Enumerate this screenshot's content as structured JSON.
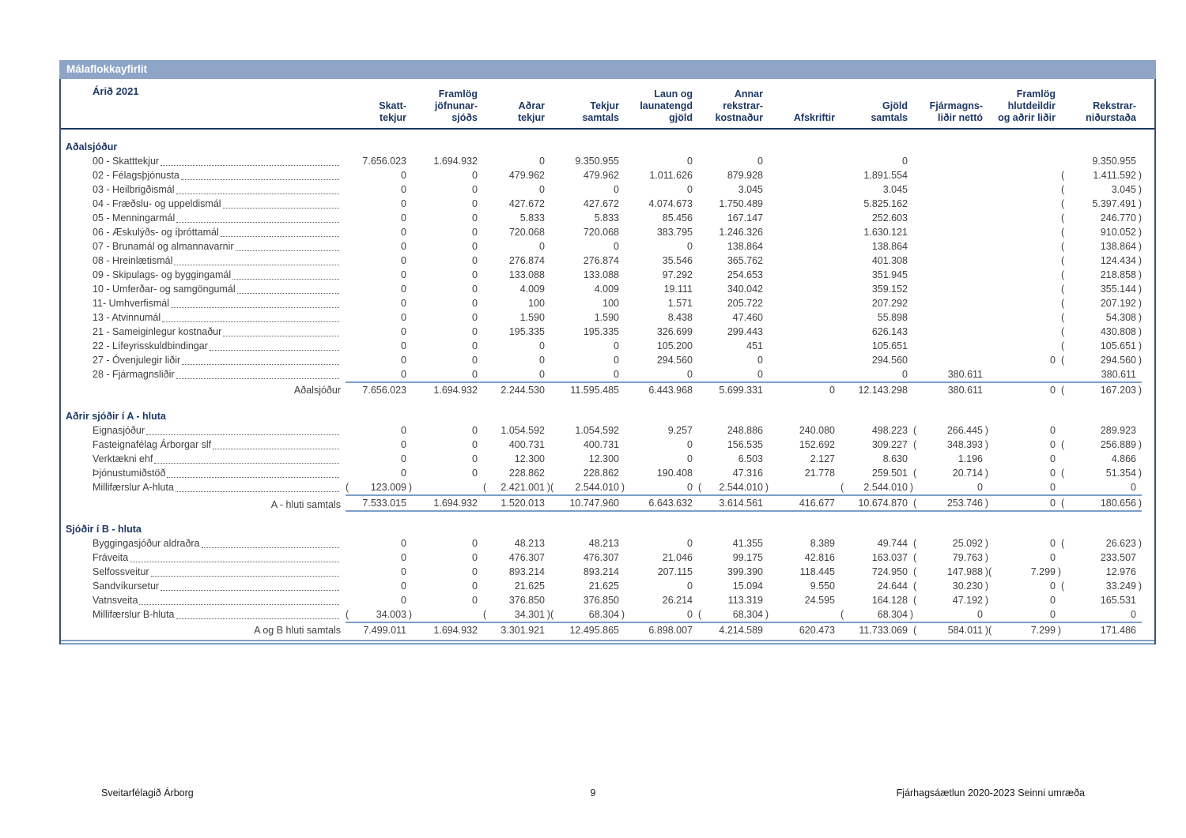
{
  "title_bar": "Málaflokkayfirlit",
  "year_label": "Árið 2021",
  "columns": [
    "Skatt-\ntekjur",
    "Framlög\njöfnunar-\nsjóðs",
    "Aðrar\ntekjur",
    "Tekjur\nsamtals",
    "Laun og\nlaunatengd\ngjöld",
    "Annar\nrekstrar-\nkostnaður",
    "Afskriftir",
    "Gjöld\nsamtals",
    "Fjármagns-\nliðir nettó",
    "Framlög\nhlutdeildir\nog aðrir liðir",
    "Rekstrar-\nniðurstaða"
  ],
  "sections": [
    {
      "heading": "Aðalsjóður",
      "rows": [
        {
          "label": "00 - Skatttekjur",
          "cells": [
            "7.656.023",
            "1.694.932",
            "0",
            "9.350.955",
            "0",
            "0",
            "",
            "0",
            "",
            "",
            "9.350.955"
          ]
        },
        {
          "label": "02 - Félagsþjónusta",
          "cells": [
            "0",
            "0",
            "479.962",
            "479.962",
            "1.011.626",
            "879.928",
            "",
            "1.891.554",
            "",
            "",
            "(1.411.592)"
          ]
        },
        {
          "label": "03 - Heilbrigðismál",
          "cells": [
            "0",
            "0",
            "0",
            "0",
            "0",
            "3.045",
            "",
            "3.045",
            "",
            "",
            "(3.045)"
          ]
        },
        {
          "label": "04 - Fræðslu- og uppeldismál",
          "cells": [
            "0",
            "0",
            "427.672",
            "427.672",
            "4.074.673",
            "1.750.489",
            "",
            "5.825.162",
            "",
            "",
            "(5.397.491)"
          ]
        },
        {
          "label": "05 - Menningarmál",
          "cells": [
            "0",
            "0",
            "5.833",
            "5.833",
            "85.456",
            "167.147",
            "",
            "252.603",
            "",
            "",
            "(246.770)"
          ]
        },
        {
          "label": "06 - Æskulýðs- og íþróttamál",
          "cells": [
            "0",
            "0",
            "720.068",
            "720.068",
            "383.795",
            "1.246.326",
            "",
            "1.630.121",
            "",
            "",
            "(910.052)"
          ]
        },
        {
          "label": "07 - Brunamál og almannavarnir",
          "cells": [
            "0",
            "0",
            "0",
            "0",
            "0",
            "138.864",
            "",
            "138.864",
            "",
            "",
            "(138.864)"
          ]
        },
        {
          "label": "08 - Hreinlætismál",
          "cells": [
            "0",
            "0",
            "276.874",
            "276.874",
            "35.546",
            "365.762",
            "",
            "401.308",
            "",
            "",
            "(124.434)"
          ]
        },
        {
          "label": "09 - Skipulags- og byggingamál",
          "cells": [
            "0",
            "0",
            "133.088",
            "133.088",
            "97.292",
            "254.653",
            "",
            "351.945",
            "",
            "",
            "(218.858)"
          ]
        },
        {
          "label": "10 - Umferðar- og samgöngumál",
          "cells": [
            "0",
            "0",
            "4.009",
            "4.009",
            "19.111",
            "340.042",
            "",
            "359.152",
            "",
            "",
            "(355.144)"
          ]
        },
        {
          "label": "11- Umhverfismál",
          "cells": [
            "0",
            "0",
            "100",
            "100",
            "1.571",
            "205.722",
            "",
            "207.292",
            "",
            "",
            "(207.192)"
          ]
        },
        {
          "label": "13 - Atvinnumál",
          "cells": [
            "0",
            "0",
            "1.590",
            "1.590",
            "8.438",
            "47.460",
            "",
            "55.898",
            "",
            "",
            "(54.308)"
          ]
        },
        {
          "label": "21 - Sameiginlegur kostnaður",
          "cells": [
            "0",
            "0",
            "195.335",
            "195.335",
            "326.699",
            "299.443",
            "",
            "626.143",
            "",
            "",
            "(430.808)"
          ]
        },
        {
          "label": "22 - Lífeyrisskuldbindingar",
          "cells": [
            "0",
            "0",
            "0",
            "0",
            "105.200",
            "451",
            "",
            "105.651",
            "",
            "",
            "(105.651)"
          ]
        },
        {
          "label": "27 - Óvenjulegir liðir",
          "cells": [
            "0",
            "0",
            "0",
            "0",
            "294.560",
            "0",
            "",
            "294.560",
            "",
            "0",
            "(294.560)"
          ]
        },
        {
          "label": "28 - Fjármagnsliðir",
          "cells": [
            "0",
            "0",
            "0",
            "0",
            "0",
            "0",
            "",
            "0",
            "380.611",
            "",
            "380.611"
          ]
        }
      ],
      "total": {
        "label": "Aðalsjóður",
        "cells": [
          "7.656.023",
          "1.694.932",
          "2.244.530",
          "11.595.485",
          "6.443.968",
          "5.699.331",
          "0",
          "12.143.298",
          "380.611",
          "0",
          "(167.203)"
        ]
      }
    },
    {
      "heading": "Aðrir sjóðir í A - hluta",
      "rows": [
        {
          "label": "Eignasjóður",
          "cells": [
            "0",
            "0",
            "1.054.592",
            "1.054.592",
            "9.257",
            "248.886",
            "240.080",
            "498.223",
            "(266.445)",
            "0",
            "289.923"
          ]
        },
        {
          "label": "Fasteignafélag Árborgar slf",
          "cells": [
            "0",
            "0",
            "400.731",
            "400.731",
            "0",
            "156.535",
            "152.692",
            "309.227",
            "(348.393)",
            "0",
            "(256.889)"
          ]
        },
        {
          "label": "Verktækni ehf",
          "cells": [
            "0",
            "0",
            "12.300",
            "12.300",
            "0",
            "6.503",
            "2.127",
            "8.630",
            "1.196",
            "0",
            "4.866"
          ]
        },
        {
          "label": "Þjónustumiðstöð",
          "cells": [
            "0",
            "0",
            "228.862",
            "228.862",
            "190.408",
            "47.316",
            "21.778",
            "259.501",
            "(20.714)",
            "0",
            "(51.354)"
          ]
        },
        {
          "label": "Millifærslur A-hluta",
          "cells": [
            "(123.009)",
            "",
            "(2.421.001)",
            "(2.544.010)",
            "0",
            "(2.544.010)",
            "",
            "(2.544.010)",
            "0",
            "0",
            "0"
          ]
        }
      ],
      "total": {
        "label": "A - hluti samtals",
        "cells": [
          "7.533.015",
          "1.694.932",
          "1.520.013",
          "10.747.960",
          "6.643.632",
          "3.614.561",
          "416.677",
          "10.674.870",
          "(253.746)",
          "0",
          "(180.656)"
        ]
      }
    },
    {
      "heading": "Sjóðir í B - hluta",
      "rows": [
        {
          "label": "Byggingasjóður aldraðra",
          "cells": [
            "0",
            "0",
            "48.213",
            "48.213",
            "0",
            "41.355",
            "8.389",
            "49.744",
            "(25.092)",
            "0",
            "(26.623)"
          ]
        },
        {
          "label": "Fráveita",
          "cells": [
            "0",
            "0",
            "476.307",
            "476.307",
            "21.046",
            "99.175",
            "42.816",
            "163.037",
            "(79.763)",
            "0",
            "233.507"
          ]
        },
        {
          "label": "Selfossveitur",
          "cells": [
            "0",
            "0",
            "893.214",
            "893.214",
            "207.115",
            "399.390",
            "118.445",
            "724.950",
            "(147.988)",
            "(7.299)",
            "12.976"
          ]
        },
        {
          "label": "Sandvíkursetur",
          "cells": [
            "0",
            "0",
            "21.625",
            "21.625",
            "0",
            "15.094",
            "9.550",
            "24.644",
            "(30.230)",
            "0",
            "(33.249)"
          ]
        },
        {
          "label": "Vatnsveita",
          "cells": [
            "0",
            "0",
            "376.850",
            "376.850",
            "26.214",
            "113.319",
            "24.595",
            "164.128",
            "(47.192)",
            "0",
            "165.531"
          ]
        },
        {
          "label": "Millifærslur B-hluta",
          "cells": [
            "(34.003)",
            "",
            "(34.301)",
            "(68.304)",
            "0",
            "(68.304)",
            "",
            "(68.304)",
            "0",
            "0",
            "0"
          ]
        }
      ],
      "total": {
        "label": "A og B hluti samtals",
        "cells": [
          "7.499.011",
          "1.694.932",
          "3.301.921",
          "12.495.865",
          "6.898.007",
          "4.214.589",
          "620.473",
          "11.733.069",
          "(584.011)",
          "(7.299)",
          "171.486"
        ]
      }
    }
  ],
  "footer": {
    "left": "Sveitarfélagið Árborg",
    "page": "9",
    "right": "Fjárhagsáætlun 2020-2023 Seinni umræða"
  },
  "colors": {
    "title_bar_bg": "#8EA5C8",
    "heading_text": "#1F3864",
    "frame_border": "#3A5078",
    "header_underline": "#17375E",
    "total_rule": "#7C9FC7",
    "body_text": "#3F3F3F"
  }
}
